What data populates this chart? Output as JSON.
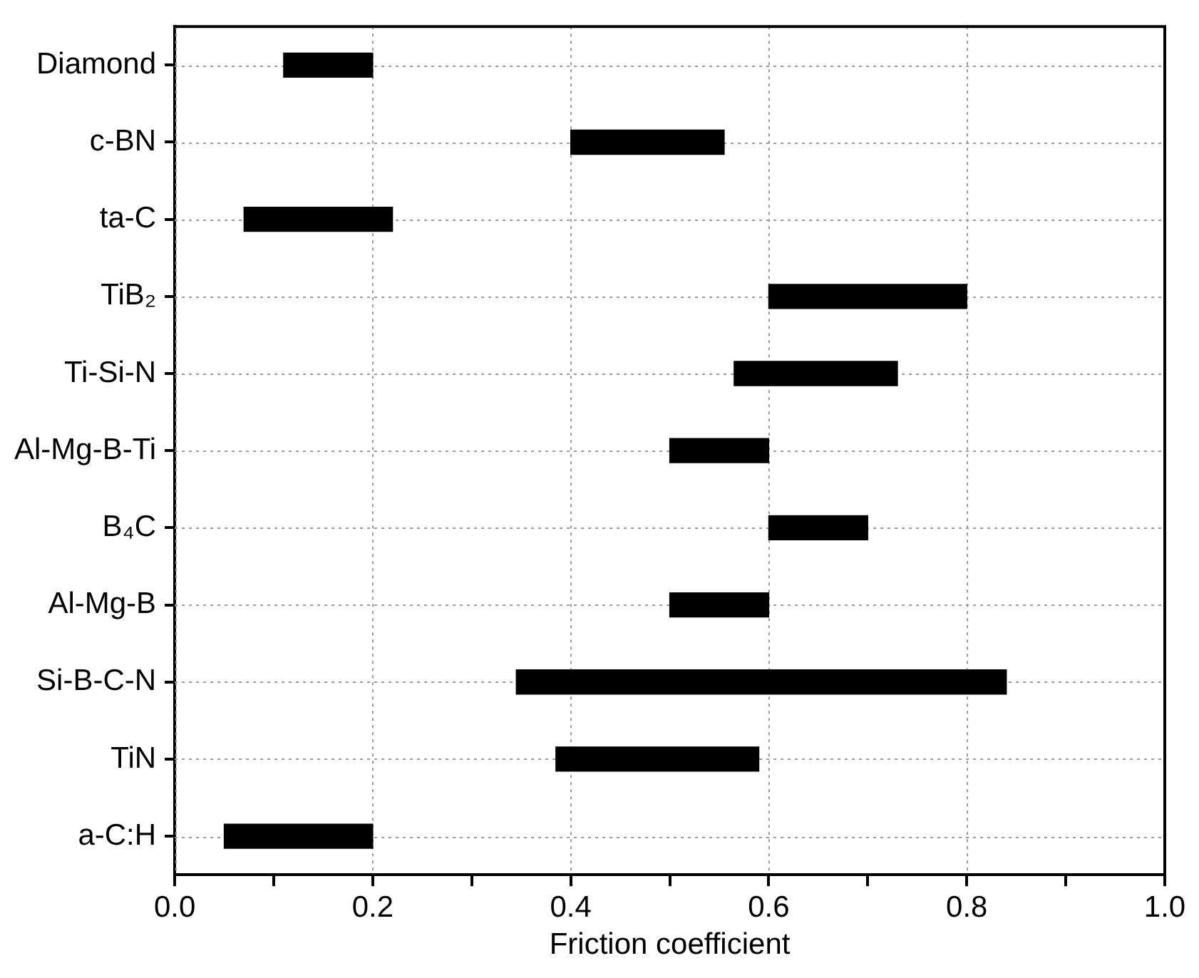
{
  "chart_data": {
    "type": "bar",
    "orientation": "horizontal",
    "xlabel": "Friction coefficient",
    "categories": [
      "Diamond",
      "c-BN",
      "ta-C",
      "TiB₂",
      "Ti-Si-N",
      "Al-Mg-B-Ti",
      "B₄C",
      "Al-Mg-B",
      "Si-B-C-N",
      "TiN",
      "a-C:H"
    ],
    "base": [
      0.11,
      0.4,
      0.07,
      0.6,
      0.565,
      0.5,
      0.6,
      0.5,
      0.345,
      0.385,
      0.05
    ],
    "values": [
      0.09,
      0.155,
      0.15,
      0.2,
      0.165,
      0.1,
      0.1,
      0.1,
      0.495,
      0.205,
      0.15
    ],
    "color": "#000000",
    "xlim": [
      0,
      1
    ],
    "xticks": [
      {
        "value": 0,
        "label": "0.0"
      },
      {
        "value": 0.1,
        "label": null
      },
      {
        "value": 0.2,
        "label": "0.2"
      },
      {
        "value": 0.3,
        "label": null
      },
      {
        "value": 0.4,
        "label": "0.4"
      },
      {
        "value": 0.5,
        "label": null
      },
      {
        "value": 0.6,
        "label": "0.6"
      },
      {
        "value": 0.7,
        "label": null
      },
      {
        "value": 0.8,
        "label": "0.8"
      },
      {
        "value": 0.9,
        "label": null
      },
      {
        "value": 1,
        "label": "1.0"
      }
    ],
    "grid": true,
    "legend": false
  }
}
